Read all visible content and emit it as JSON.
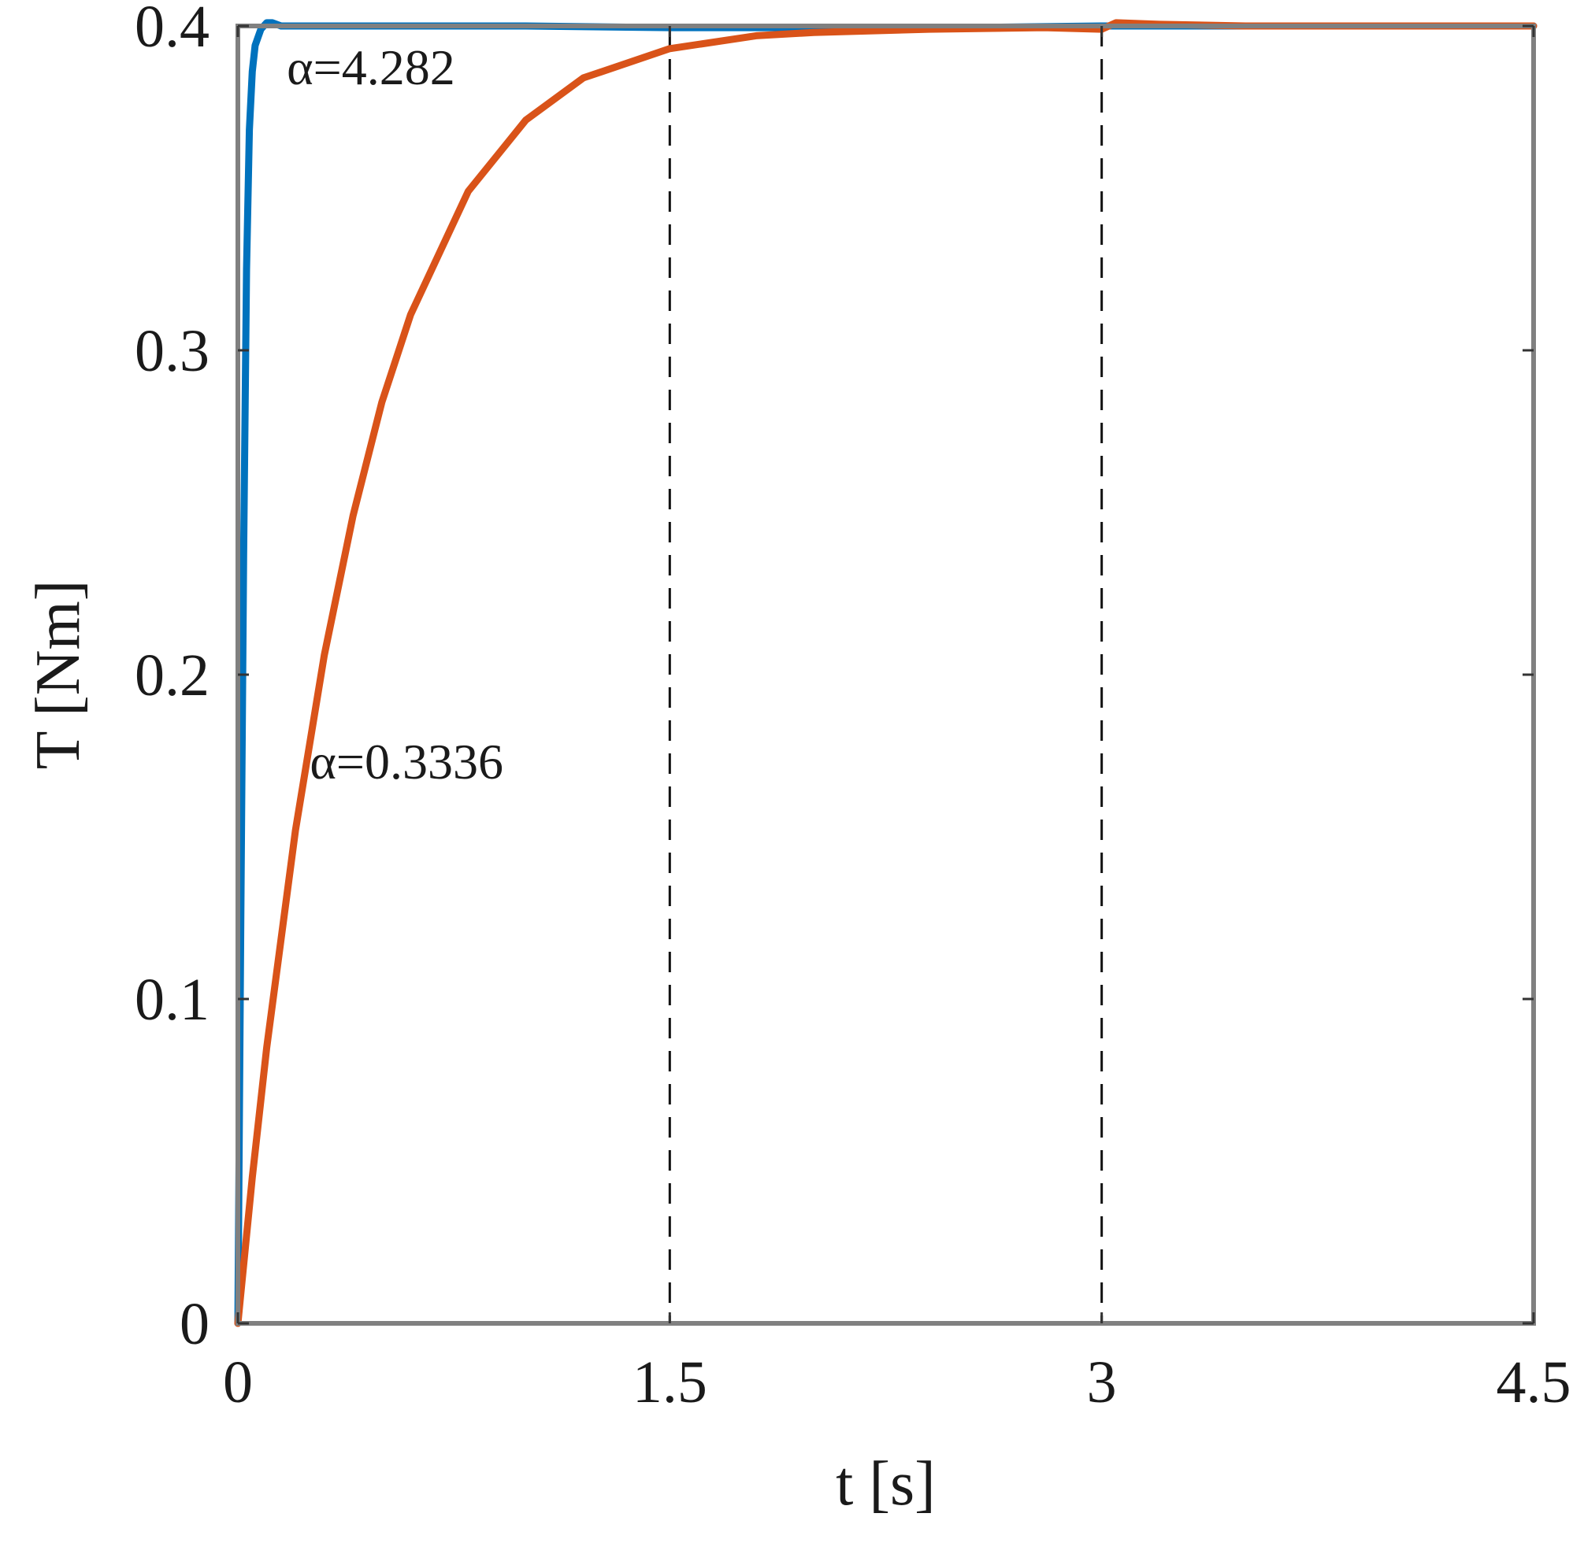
{
  "chart_data": {
    "type": "line",
    "title": "",
    "xlabel": "t [s]",
    "ylabel": "T [Nm]",
    "xlim": [
      0,
      4.5
    ],
    "ylim": [
      0,
      0.4
    ],
    "xticks": [
      0,
      1.5,
      3,
      4.5
    ],
    "xtick_labels": [
      "0",
      "1.5",
      "3",
      "4.5"
    ],
    "yticks": [
      0,
      0.1,
      0.2,
      0.3,
      0.4
    ],
    "ytick_labels": [
      "0",
      "0.1",
      "0.2",
      "0.3",
      "0.4"
    ],
    "grid": false,
    "legend": "none",
    "vlines": [
      1.5,
      3
    ],
    "series": [
      {
        "color": "#0072BD",
        "x": [
          0,
          0.01,
          0.02,
          0.03,
          0.04,
          0.05,
          0.06,
          0.08,
          0.1,
          0.12,
          0.15,
          0.2,
          0.3,
          0.5,
          1,
          1.5,
          2,
          2.5,
          3,
          3.5,
          4,
          4.5
        ],
        "y": [
          0,
          0.124,
          0.237,
          0.325,
          0.368,
          0.386,
          0.394,
          0.399,
          0.401,
          0.401,
          0.4,
          0.4,
          0.4,
          0.4,
          0.4,
          0.3995,
          0.3995,
          0.3995,
          0.4,
          0.4,
          0.4,
          0.4
        ]
      },
      {
        "color": "#D95319",
        "x": [
          0,
          0.05,
          0.1,
          0.2,
          0.3,
          0.4,
          0.5,
          0.6,
          0.8,
          1,
          1.2,
          1.5,
          1.8,
          2,
          2.4,
          2.8,
          3,
          3.05,
          3.2,
          3.5,
          4,
          4.5
        ],
        "y": [
          0,
          0.045,
          0.085,
          0.152,
          0.206,
          0.249,
          0.284,
          0.311,
          0.349,
          0.371,
          0.384,
          0.393,
          0.397,
          0.398,
          0.399,
          0.3995,
          0.399,
          0.401,
          0.4005,
          0.4,
          0.4,
          0.4
        ]
      }
    ],
    "annotations": [
      {
        "text": "α=4.282",
        "x": 0.17,
        "y": 0.382
      },
      {
        "text": "α=0.3336",
        "x": 0.25,
        "y": 0.168
      }
    ]
  }
}
